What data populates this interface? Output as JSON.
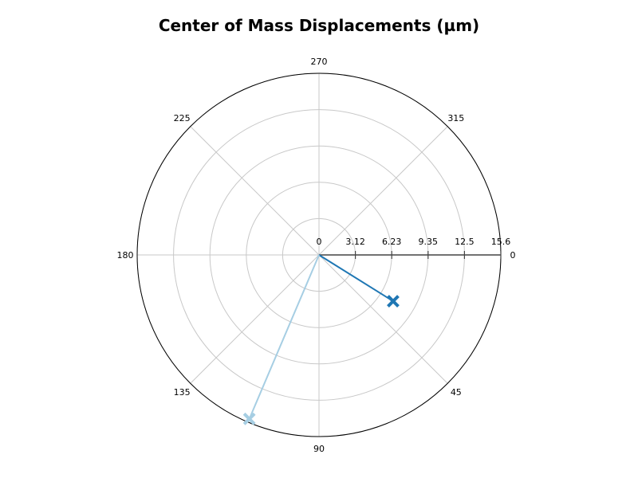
{
  "chart_data": {
    "type": "polar-scatter",
    "title": "Center of Mass Displacements (µm)",
    "angle_ticks": [
      "0",
      "45",
      "90",
      "135",
      "180",
      "225",
      "270",
      "315"
    ],
    "radial_ticks": [
      "0",
      "3.12",
      "6.23",
      "9.35",
      "12.5",
      "15.6"
    ],
    "rmax": 15.6,
    "angle_direction": "clockwise",
    "zero_angle": "right",
    "grid": true,
    "series": [
      {
        "angle": 32,
        "r": 7.5,
        "color": "#1f77b4",
        "marker": "x"
      },
      {
        "angle": 113,
        "r": 15.3,
        "color": "#a6cee3",
        "marker": "x"
      }
    ]
  }
}
